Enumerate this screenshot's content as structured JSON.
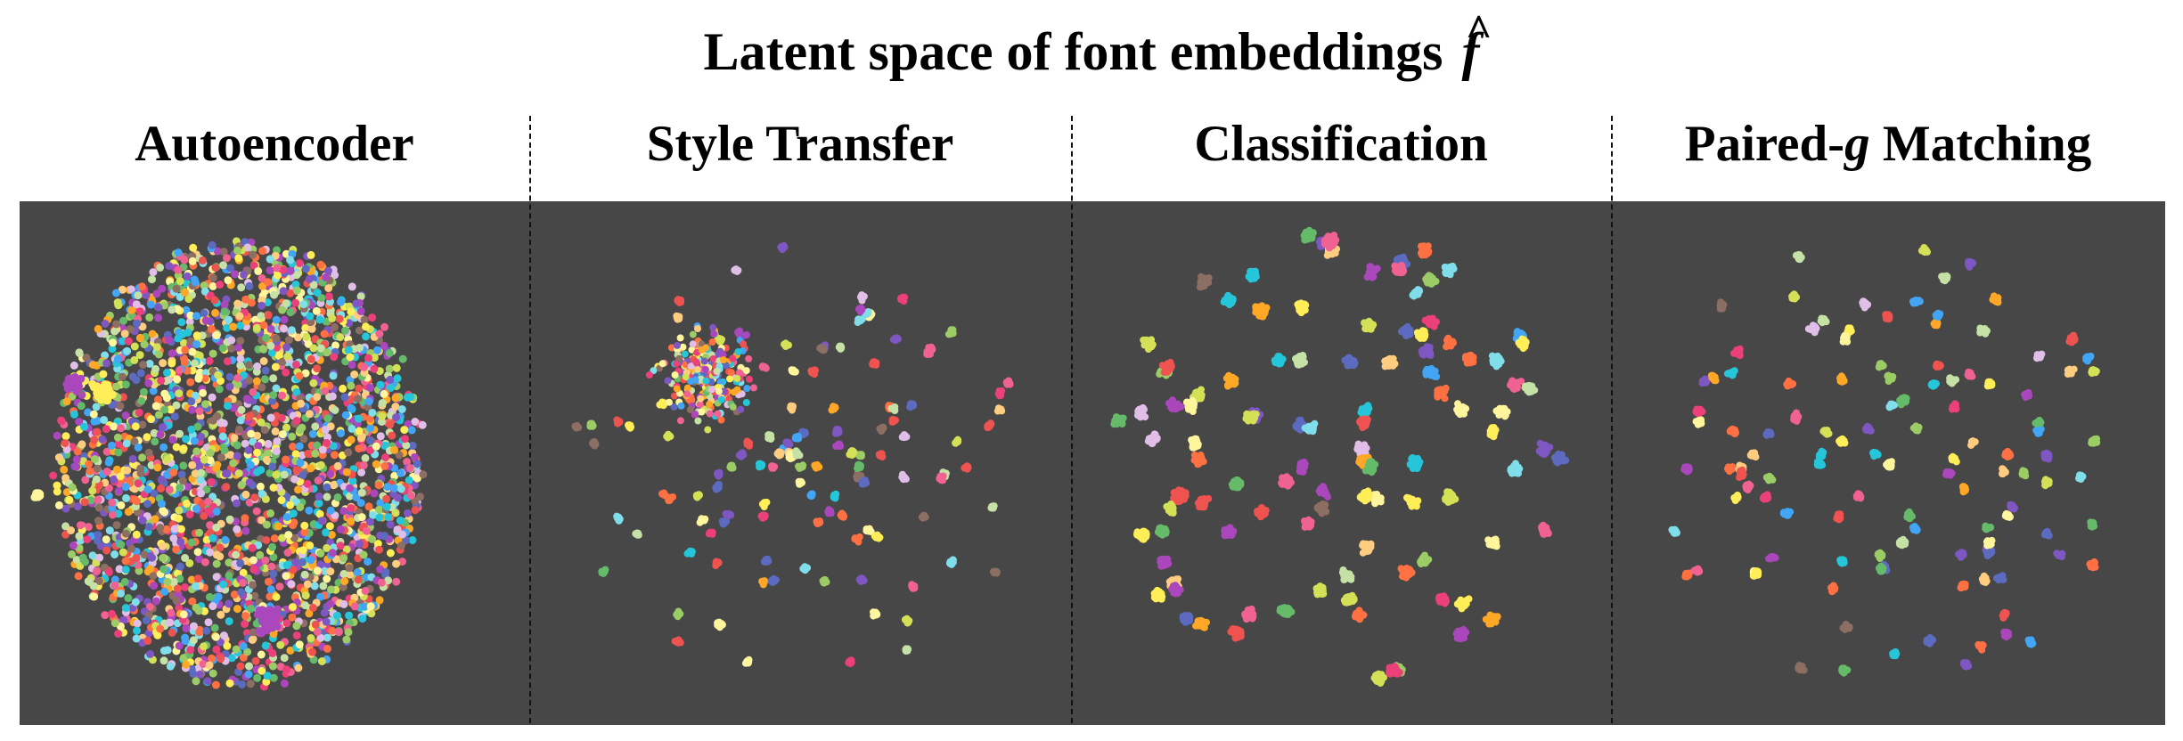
{
  "figure": {
    "title": "Latent space of font embeddings",
    "title_symbol": "f",
    "title_symbol_hat": "^",
    "background_color": "#474747"
  },
  "panels": [
    {
      "title": "Autoencoder",
      "title_parts": [
        "Autoencoder"
      ]
    },
    {
      "title": "Style Transfer",
      "title_parts": [
        "Style Transfer"
      ]
    },
    {
      "title": "Classification",
      "title_parts": [
        "Classification"
      ]
    },
    {
      "title": "Paired-g Matching",
      "title_parts": [
        "Paired-",
        "g",
        " Matching"
      ]
    }
  ],
  "chart_data": [
    {
      "type": "scatter",
      "panel": "Autoencoder",
      "title": "Autoencoder",
      "grid": false,
      "legend": "none",
      "distribution": "one large dense region of overlapping, mixed-color points with a few small satellite groups",
      "palette": [
        "#f06292",
        "#66bb6a",
        "#42a5f5",
        "#ffee58",
        "#ab47bc",
        "#ff7043",
        "#26c6da",
        "#d4e157",
        "#8d6e63",
        "#7e57c2",
        "#ec407a",
        "#9ccc65",
        "#ffa726",
        "#e1bee7",
        "#fff59d",
        "#80deea",
        "#ef5350",
        "#5c6bc0",
        "#c5e1a5",
        "#ffcc80"
      ]
    },
    {
      "type": "scatter",
      "panel": "Style Transfer",
      "title": "Style Transfer",
      "grid": false,
      "legend": "none",
      "distribution": "many small, well-separated single-color clusters spread around a denser mixed center",
      "palette": [
        "#f06292",
        "#66bb6a",
        "#42a5f5",
        "#ffee58",
        "#ab47bc",
        "#ff7043",
        "#26c6da",
        "#d4e157",
        "#8d6e63",
        "#7e57c2",
        "#ec407a",
        "#9ccc65",
        "#ffa726",
        "#e1bee7",
        "#fff59d",
        "#80deea",
        "#ef5350",
        "#5c6bc0",
        "#c5e1a5",
        "#ffcc80"
      ]
    },
    {
      "type": "scatter",
      "panel": "Classification",
      "title": "Classification",
      "grid": false,
      "legend": "none",
      "distribution": "larger compact single-color clusters, well separated",
      "palette": [
        "#f06292",
        "#66bb6a",
        "#42a5f5",
        "#ffee58",
        "#ab47bc",
        "#ff7043",
        "#26c6da",
        "#d4e157",
        "#8d6e63",
        "#7e57c2",
        "#ec407a",
        "#9ccc65",
        "#ffa726",
        "#e1bee7",
        "#fff59d",
        "#80deea",
        "#ef5350",
        "#5c6bc0",
        "#c5e1a5",
        "#ffcc80"
      ]
    },
    {
      "type": "scatter",
      "panel": "Paired-g Matching",
      "title": "Paired-g Matching",
      "grid": false,
      "legend": "none",
      "distribution": "tight, well-separated single-color clusters spread evenly",
      "palette": [
        "#f06292",
        "#66bb6a",
        "#42a5f5",
        "#ffee58",
        "#ab47bc",
        "#ff7043",
        "#26c6da",
        "#d4e157",
        "#8d6e63",
        "#7e57c2",
        "#ec407a",
        "#9ccc65",
        "#ffa726",
        "#e1bee7",
        "#fff59d",
        "#80deea",
        "#ef5350",
        "#5c6bc0",
        "#c5e1a5",
        "#ffcc80"
      ]
    }
  ]
}
